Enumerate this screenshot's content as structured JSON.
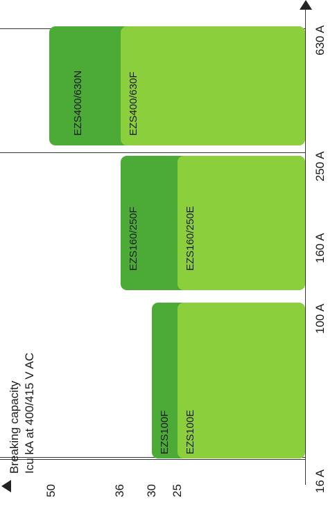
{
  "colors": {
    "dark": "#4bab36",
    "light": "#8ccf3c",
    "line": "#333333"
  },
  "y_axis": {
    "title_line1": "Breaking capacity",
    "title_line2": "Icu kA at 400/415 V AC",
    "ticks": [
      "50",
      "36",
      "30",
      "25"
    ]
  },
  "x_axis": {
    "ticks": [
      "16 A",
      "100 A",
      "160 A",
      "250 A",
      "630 A"
    ]
  },
  "breakers": [
    {
      "dark_label": "EZS100F",
      "dark_kA": 30,
      "light_label": "EZS100E",
      "light_kA": 25,
      "from": "16 A",
      "to": "100 A"
    },
    {
      "dark_label": "EZS160/250F",
      "dark_kA": 36,
      "light_label": "EZS160/250E",
      "light_kA": 25,
      "from": "100 A",
      "to": "250 A"
    },
    {
      "dark_label": "EZS400/630N",
      "dark_kA": 50,
      "light_label": "EZS400/630F",
      "light_kA": 36,
      "from": "250 A",
      "to": "630 A"
    }
  ]
}
